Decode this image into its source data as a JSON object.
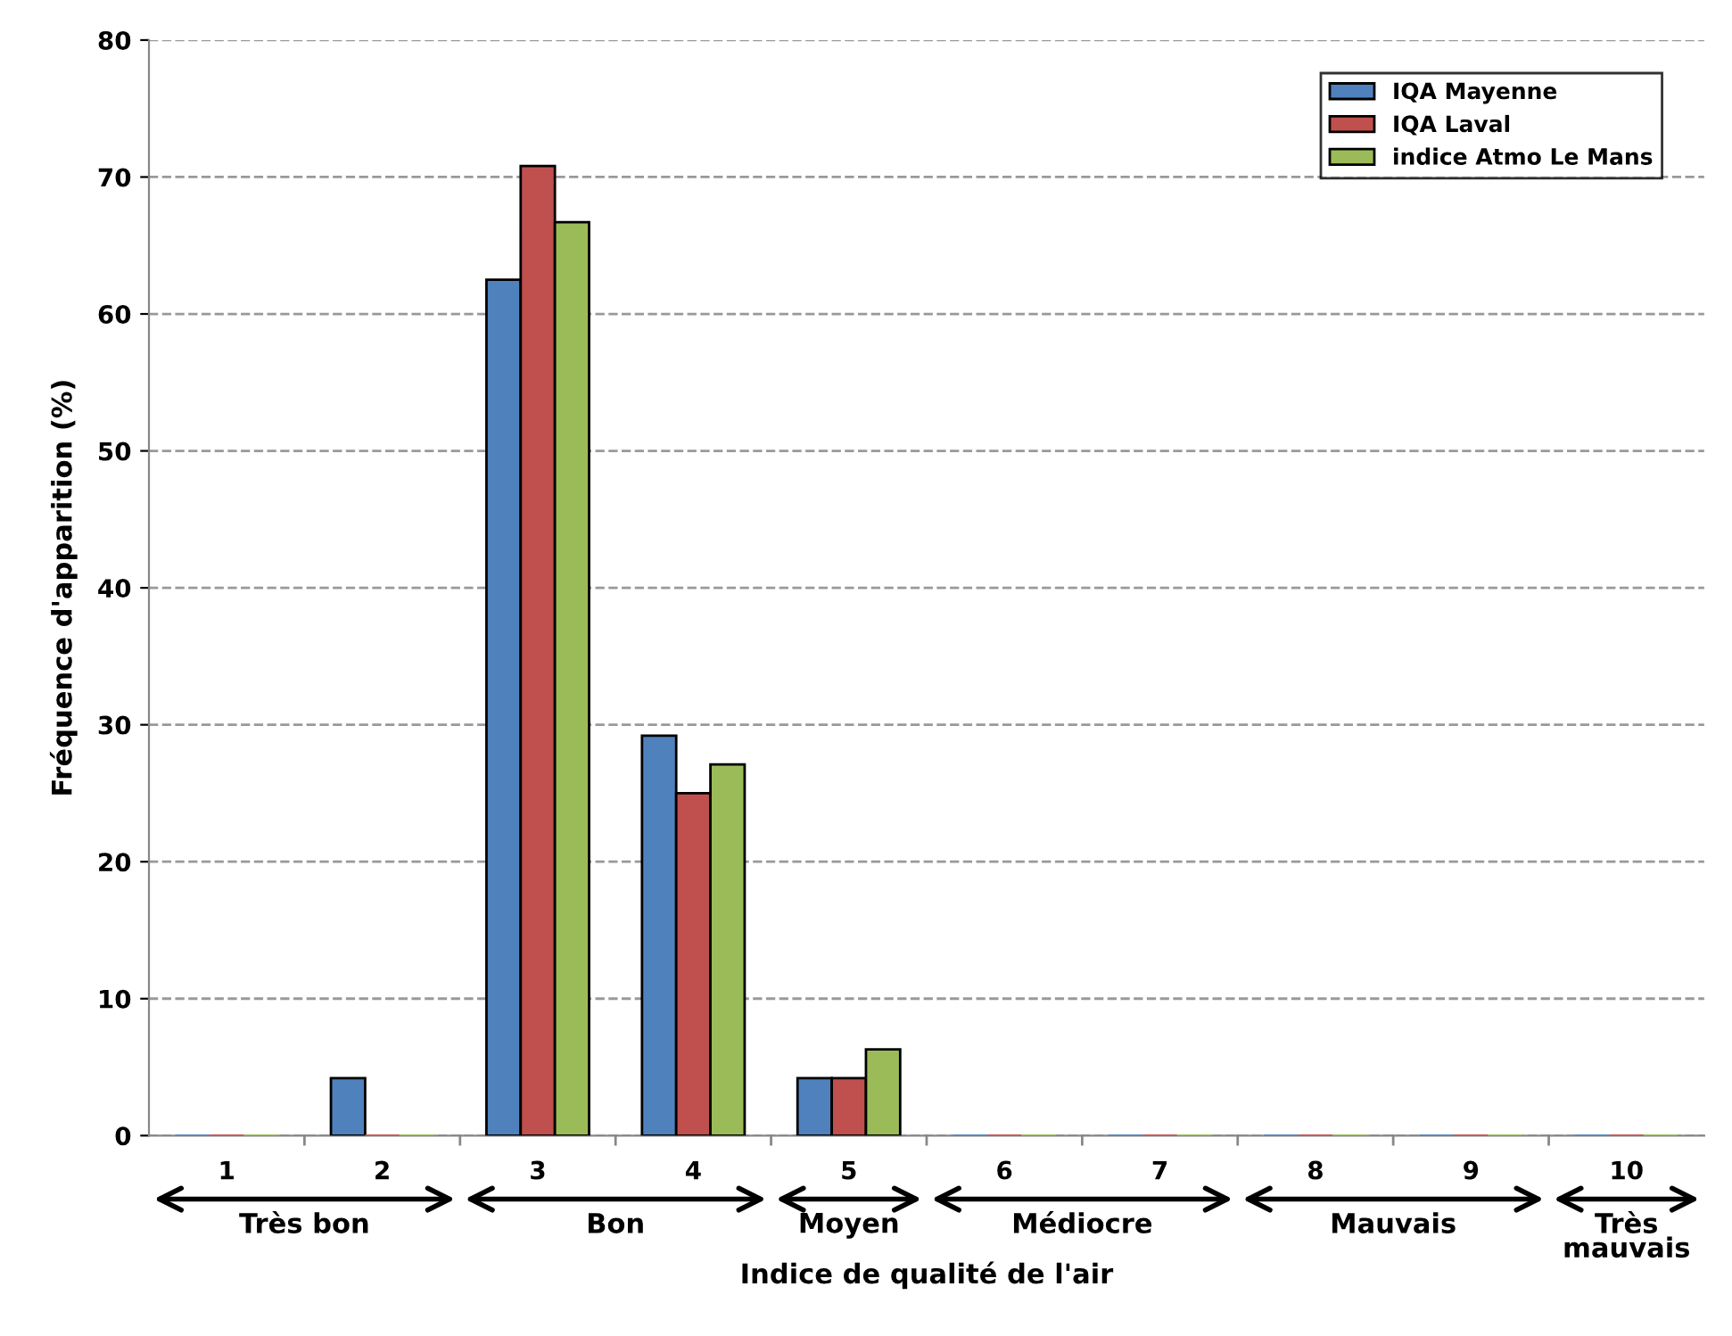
{
  "chart_data": {
    "type": "bar",
    "xlabel": "Indice de qualité de l'air",
    "ylabel": "Fréquence d'apparition (%)",
    "categories": [
      "1",
      "2",
      "3",
      "4",
      "5",
      "6",
      "7",
      "8",
      "9",
      "10"
    ],
    "series": [
      {
        "name": "IQA Mayenne",
        "color": "#4f81bd",
        "values": [
          0,
          4.2,
          62.5,
          29.2,
          4.2,
          0,
          0,
          0,
          0,
          0
        ]
      },
      {
        "name": "IQA Laval",
        "color": "#c0504d",
        "values": [
          0,
          0,
          70.8,
          25,
          4.2,
          0,
          0,
          0,
          0,
          0
        ]
      },
      {
        "name": "indice Atmo Le Mans",
        "color": "#9bbb59",
        "values": [
          0,
          0,
          66.7,
          27.1,
          6.3,
          0,
          0,
          0,
          0,
          0
        ]
      }
    ],
    "ylim": [
      0,
      80
    ],
    "yticks": [
      0,
      10,
      20,
      30,
      40,
      50,
      60,
      70,
      80
    ],
    "grid": "y",
    "legend": "top right",
    "annotations": [
      "Très bon",
      "Bon",
      "Moyen",
      "Médiocre",
      "Mauvais",
      "Très\nmauvais"
    ]
  }
}
